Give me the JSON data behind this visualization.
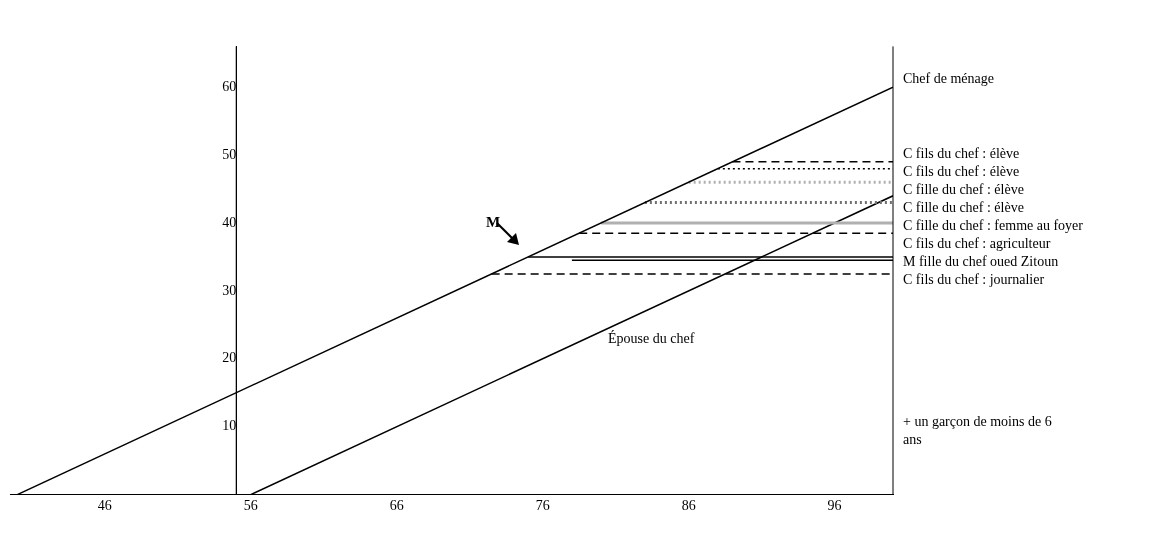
{
  "chart_data": {
    "type": "line",
    "xlim": [
      39.5,
      100
    ],
    "ylim": [
      0,
      66
    ],
    "xticks": [
      46,
      56,
      66,
      76,
      86,
      96
    ],
    "yticks": [
      10,
      20,
      30,
      40,
      50,
      60
    ],
    "grid": false,
    "legend": false,
    "marker": "none",
    "series": [
      {
        "name": "Chef de ménage",
        "color": "#000000",
        "x": [
          40,
          100
        ],
        "values": [
          0,
          60
        ],
        "line_style": "solid"
      },
      {
        "name": "C fils du chef : élève",
        "color": "#000000",
        "x": [
          89,
          100
        ],
        "values": [
          49,
          49
        ],
        "line_style": "dashed"
      },
      {
        "name": "C fils du chef : élève",
        "color": "#000000",
        "x": [
          88,
          100
        ],
        "values": [
          48,
          48
        ],
        "line_style": "dotted"
      },
      {
        "name": "C fille du chef : élève",
        "color": "#b0b0b0",
        "x": [
          86,
          100
        ],
        "values": [
          46,
          46
        ],
        "line_style": "dotted"
      },
      {
        "name": "C fille du chef : élève",
        "color": "#707070",
        "x": [
          83,
          100
        ],
        "values": [
          43,
          43
        ],
        "line_style": "dotted"
      },
      {
        "name": "C fille du chef : femme au foyer",
        "color": "#b0b0b0",
        "x": [
          80,
          100
        ],
        "values": [
          40,
          40
        ],
        "line_style": "solid"
      },
      {
        "name": "C fils du chef : agriculteur",
        "color": "#000000",
        "x": [
          78.5,
          100
        ],
        "values": [
          38.5,
          38.5
        ],
        "line_style": "dashed"
      },
      {
        "name": "M fille du chef oued Zitoun",
        "color": "#000000",
        "x": [
          75,
          100
        ],
        "values": [
          35,
          35
        ],
        "line_style": "solid"
      },
      {
        "name": null,
        "color": "#000000",
        "x": [
          78,
          100
        ],
        "values": [
          34.5,
          34.5
        ],
        "line_style": "solid"
      },
      {
        "name": "C fils du chef : journalier",
        "color": "#000000",
        "x": [
          72.5,
          100
        ],
        "values": [
          32.5,
          32.5
        ],
        "line_style": "dashed"
      },
      {
        "name": null,
        "color": "#000000",
        "x": [
          56,
          100
        ],
        "values": [
          0,
          44
        ],
        "line_style": "solid"
      }
    ],
    "ref_lines": [
      {
        "axis": "x",
        "value": 55
      },
      {
        "axis": "x",
        "value": 100
      }
    ],
    "annotations": [
      "Épouse du chef",
      "M",
      "+ un garçon de moins de 6 ans"
    ]
  }
}
